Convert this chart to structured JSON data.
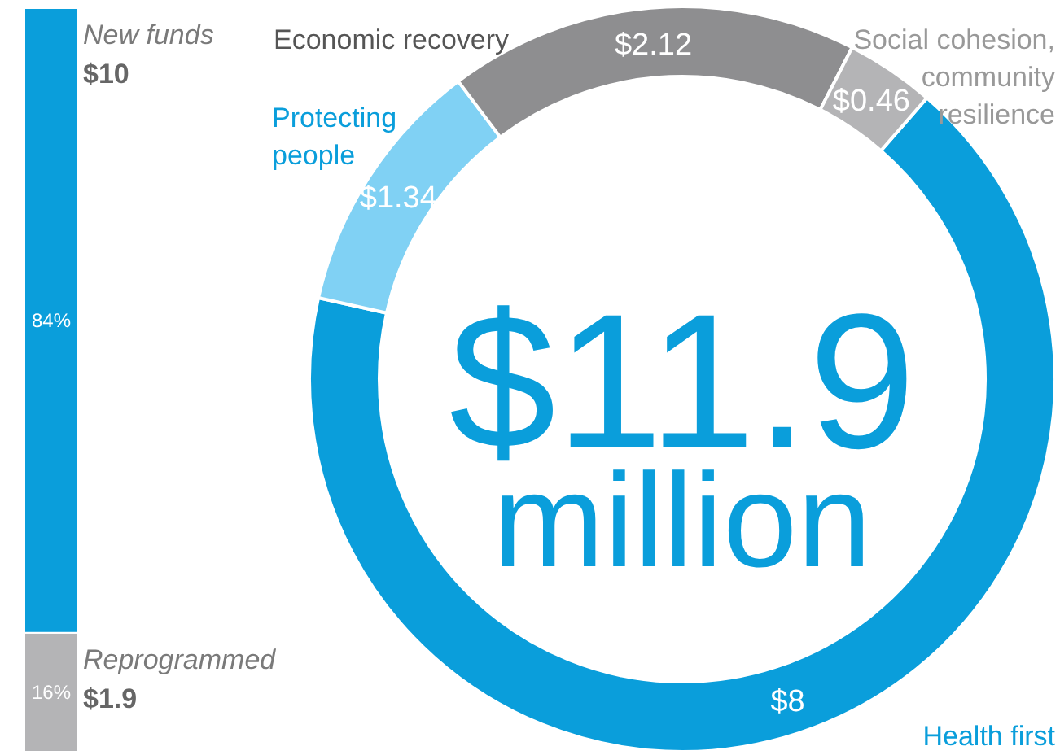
{
  "chart_data": [
    {
      "type": "bar",
      "stacked": true,
      "categories": [
        null
      ],
      "series": [
        {
          "name": "Reprogrammed",
          "color": "#b4b4b6",
          "values": [
            16
          ],
          "value_labels": [
            "16%"
          ]
        },
        {
          "name": "New funds",
          "color": "#0a9edb",
          "values": [
            84
          ],
          "value_labels": [
            "84%"
          ]
        }
      ],
      "annotations": [
        "$1.9",
        "$10"
      ]
    },
    {
      "type": "donut",
      "categories": [
        "Health first",
        "Protecting people",
        "Economic recovery",
        "Social cohesion, community resilience"
      ],
      "values": [
        8,
        1.34,
        2.12,
        0.46
      ],
      "colors": [
        "#0a9edb",
        "#80d1f4",
        "#8e8e90",
        "#b4b4b6"
      ],
      "value_labels": [
        "$8",
        "$1.34",
        "$2.12",
        "$0.46"
      ],
      "annotations": [
        "$11.9 million"
      ]
    }
  ]
}
